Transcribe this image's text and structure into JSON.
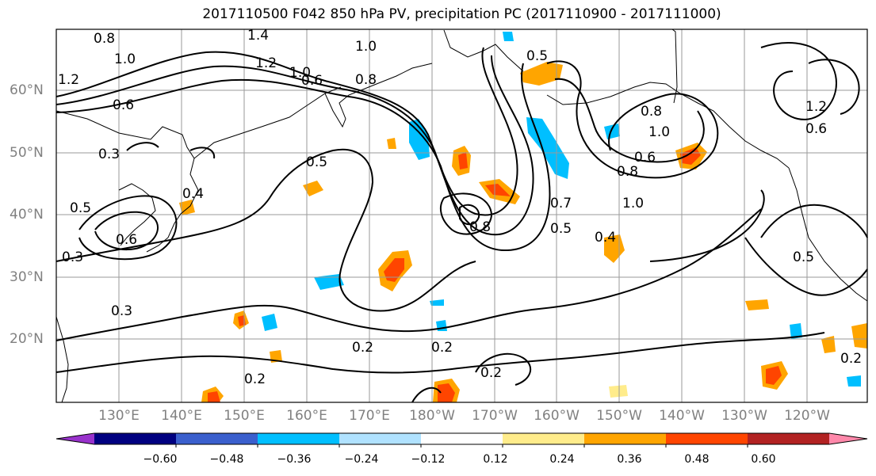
{
  "title": "2017110500 F042 850 hPa PV, precipitation PC (2017110900 - 2017111000)",
  "map": {
    "lat_labels": [
      "60°N",
      "50°N",
      "40°N",
      "30°N",
      "20°N"
    ],
    "lon_labels": [
      "130°E",
      "140°E",
      "150°E",
      "160°E",
      "170°E",
      "180°W",
      "170°W",
      "160°W",
      "150°W",
      "140°W",
      "130°W",
      "120°W"
    ],
    "contour_labels": [
      "1.4",
      "1.0",
      "1.2",
      "0.8",
      "1.0",
      "0.6",
      "1.2",
      "0.8",
      "1.0",
      "0.6",
      "0.3",
      "0.5",
      "0.4",
      "0.7",
      "1.0",
      "0.8",
      "0.5",
      "0.4",
      "0.3",
      "0.3",
      "0.2",
      "0.2",
      "0.2",
      "0.2",
      "0.5",
      "0.2",
      "0.5",
      "0.6",
      "1.2",
      "0.6",
      "0.8",
      "0.6",
      "1.0",
      "0.8",
      "0.5"
    ]
  },
  "colorbar": {
    "tick_labels": [
      "−0.60",
      "−0.48",
      "−0.36",
      "−0.24",
      "−0.12",
      "0.12",
      "0.24",
      "0.36",
      "0.48",
      "0.60"
    ],
    "colors": [
      "#9932cc",
      "#000080",
      "#3a5fcd",
      "#00bfff",
      "#b0e2ff",
      "#ffffff",
      "#ffec8b",
      "#ffa500",
      "#ff4500",
      "#b22222",
      "#ff88aa"
    ]
  }
}
